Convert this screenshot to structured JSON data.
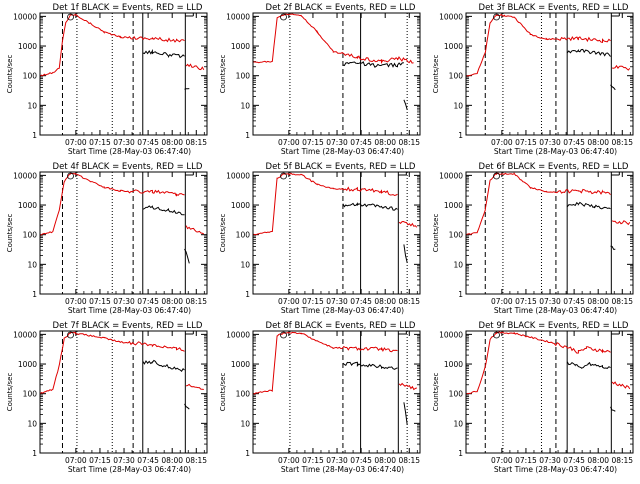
{
  "figure": {
    "background": "#ffffff"
  },
  "colors": {
    "events": "#000000",
    "lld": "#e00000",
    "axis": "#000000"
  },
  "ylabel": "Counts/sec",
  "xlabel": "Start Time (28-May-03 06:47:40)",
  "x_tick_labels": [
    "07:00",
    "07:15",
    "07:30",
    "07:45",
    "08:00",
    "08:15"
  ],
  "y_tick_labels": [
    "1",
    "10",
    "100",
    "1000",
    "10000"
  ],
  "chart_data": [
    {
      "type": "line",
      "title": "Det 1f BLACK = Events, RED = LLD",
      "xlim": [
        -10,
        94
      ],
      "ylim": [
        1,
        13000
      ],
      "markers": {
        "dotted": [
          13,
          35
        ],
        "dashed": [
          4,
          48
        ],
        "solid": [
          54
        ]
      },
      "series": [
        {
          "name": "LLD",
          "points": [
            [
              -10,
              100
            ],
            [
              -2,
              125
            ],
            [
              2,
              180
            ],
            [
              4,
              1500
            ],
            [
              6,
              6200
            ],
            [
              9,
              11000
            ],
            [
              12,
              11500
            ],
            [
              30,
              3000
            ],
            [
              40,
              2000
            ],
            [
              60,
              1800
            ],
            [
              75,
              1500
            ],
            [
              80,
              1450
            ]
          ]
        },
        {
          "name": "LLD",
          "points": [
            [
              81,
              240
            ],
            [
              92,
              170
            ]
          ]
        },
        {
          "name": "Events",
          "points": [
            [
              54,
              600
            ],
            [
              60,
              640
            ],
            [
              70,
              500
            ],
            [
              80,
              440
            ]
          ]
        },
        {
          "name": "Events",
          "points": [
            [
              80,
              40
            ],
            [
              83,
              32
            ]
          ]
        }
      ]
    },
    {
      "type": "line",
      "title": "Det 2f BLACK = Events, RED = LLD",
      "xlim": [
        -10,
        94
      ],
      "ylim": [
        1,
        13000
      ],
      "markers": {
        "dotted": [
          13,
          86
        ],
        "dashed": [
          46
        ],
        "solid": [
          57
        ]
      },
      "series": [
        {
          "name": "LLD",
          "points": [
            [
              -10,
              280
            ],
            [
              2,
              300
            ],
            [
              5,
              9000
            ],
            [
              10,
              12000
            ],
            [
              20,
              11000
            ],
            [
              30,
              3000
            ],
            [
              40,
              650
            ],
            [
              55,
              420
            ],
            [
              70,
              300
            ],
            [
              80,
              380
            ],
            [
              90,
              290
            ]
          ]
        },
        {
          "name": "Events",
          "points": [
            [
              46,
              250
            ],
            [
              55,
              280
            ],
            [
              65,
              220
            ],
            [
              80,
              230
            ],
            [
              84,
              250
            ]
          ]
        },
        {
          "name": "Events",
          "points": [
            [
              84,
              15
            ],
            [
              86,
              8
            ]
          ]
        }
      ]
    },
    {
      "type": "line",
      "title": "Det 3f BLACK = Events, RED = LLD",
      "xlim": [
        -10,
        94
      ],
      "ylim": [
        1,
        13000
      ],
      "markers": {
        "dotted": [
          13,
          37
        ],
        "dashed": [
          2,
          46
        ],
        "solid": [
          53
        ]
      },
      "series": [
        {
          "name": "LLD",
          "points": [
            [
              -10,
              100
            ],
            [
              -3,
              120
            ],
            [
              2,
              600
            ],
            [
              5,
              6000
            ],
            [
              9,
              11500
            ],
            [
              14,
              10500
            ],
            [
              20,
              9500
            ],
            [
              30,
              2500
            ],
            [
              40,
              1700
            ],
            [
              60,
              1800
            ],
            [
              75,
              1500
            ],
            [
              80,
              1450
            ]
          ]
        },
        {
          "name": "LLD",
          "points": [
            [
              81,
              200
            ],
            [
              92,
              170
            ]
          ]
        },
        {
          "name": "Events",
          "points": [
            [
              53,
              650
            ],
            [
              60,
              700
            ],
            [
              70,
              600
            ],
            [
              80,
              500
            ]
          ]
        },
        {
          "name": "Events",
          "points": [
            [
              80,
              45
            ],
            [
              83,
              30
            ]
          ]
        }
      ]
    },
    {
      "type": "line",
      "title": "Det 4f BLACK = Events, RED = LLD",
      "xlim": [
        -10,
        94
      ],
      "ylim": [
        1,
        13000
      ],
      "markers": {
        "dotted": [
          13,
          35
        ],
        "dashed": [
          4,
          48
        ],
        "solid": [
          54
        ]
      },
      "series": [
        {
          "name": "LLD",
          "points": [
            [
              -10,
              100
            ],
            [
              -2,
              125
            ],
            [
              2,
              700
            ],
            [
              5,
              6000
            ],
            [
              9,
              11500
            ],
            [
              12,
              11000
            ],
            [
              30,
              4000
            ],
            [
              40,
              3000
            ],
            [
              60,
              2800
            ],
            [
              75,
              2300
            ],
            [
              80,
              2200
            ]
          ]
        },
        {
          "name": "LLD",
          "points": [
            [
              81,
              180
            ],
            [
              92,
              120
            ]
          ]
        },
        {
          "name": "Events",
          "points": [
            [
              54,
              800
            ],
            [
              60,
              850
            ],
            [
              70,
              650
            ],
            [
              80,
              500
            ]
          ]
        },
        {
          "name": "Events",
          "points": [
            [
              80,
              35
            ],
            [
              83,
              12
            ]
          ]
        }
      ]
    },
    {
      "type": "line",
      "title": "Det 5f BLACK = Events, RED = LLD",
      "xlim": [
        -10,
        94
      ],
      "ylim": [
        1,
        13000
      ],
      "markers": {
        "dotted": [
          13,
          86
        ],
        "dashed": [
          46
        ],
        "solid": [
          57
        ]
      },
      "series": [
        {
          "name": "LLD",
          "points": [
            [
              -10,
              100
            ],
            [
              2,
              130
            ],
            [
              5,
              8000
            ],
            [
              10,
              11500
            ],
            [
              20,
              10500
            ],
            [
              30,
              5000
            ],
            [
              40,
              3500
            ],
            [
              55,
              3400
            ],
            [
              70,
              2900
            ],
            [
              80,
              2200
            ]
          ]
        },
        {
          "name": "LLD",
          "points": [
            [
              81,
              280
            ],
            [
              92,
              200
            ]
          ]
        },
        {
          "name": "Events",
          "points": [
            [
              46,
              1000
            ],
            [
              55,
              1100
            ],
            [
              70,
              900
            ],
            [
              80,
              700
            ]
          ]
        },
        {
          "name": "Events",
          "points": [
            [
              84,
              50
            ],
            [
              86,
              10
            ]
          ]
        }
      ]
    },
    {
      "type": "line",
      "title": "Det 6f BLACK = Events, RED = LLD",
      "xlim": [
        -10,
        94
      ],
      "ylim": [
        1,
        13000
      ],
      "markers": {
        "dotted": [
          13,
          37
        ],
        "dashed": [
          2,
          46
        ],
        "solid": [
          53
        ]
      },
      "series": [
        {
          "name": "LLD",
          "points": [
            [
              -10,
              100
            ],
            [
              -3,
              120
            ],
            [
              2,
              700
            ],
            [
              5,
              7000
            ],
            [
              9,
              11500
            ],
            [
              20,
              11000
            ],
            [
              30,
              4000
            ],
            [
              40,
              2800
            ],
            [
              60,
              3000
            ],
            [
              75,
              2600
            ],
            [
              80,
              2400
            ]
          ]
        },
        {
          "name": "LLD",
          "points": [
            [
              81,
              300
            ],
            [
              92,
              240
            ]
          ]
        },
        {
          "name": "Events",
          "points": [
            [
              53,
              1000
            ],
            [
              60,
              1100
            ],
            [
              70,
              900
            ],
            [
              80,
              700
            ]
          ]
        },
        {
          "name": "Events",
          "points": [
            [
              80,
              40
            ],
            [
              83,
              30
            ]
          ]
        }
      ]
    },
    {
      "type": "line",
      "title": "Det 7f BLACK = Events, RED = LLD",
      "xlim": [
        -10,
        94
      ],
      "ylim": [
        1,
        13000
      ],
      "markers": {
        "dotted": [
          13,
          35
        ],
        "dashed": [
          4,
          48
        ],
        "solid": [
          54
        ]
      },
      "series": [
        {
          "name": "LLD",
          "points": [
            [
              -10,
              100
            ],
            [
              -2,
              140
            ],
            [
              2,
              900
            ],
            [
              5,
              7000
            ],
            [
              9,
              11500
            ],
            [
              12,
              11000
            ],
            [
              30,
              7500
            ],
            [
              40,
              5500
            ],
            [
              60,
              4500
            ],
            [
              75,
              3200
            ],
            [
              80,
              3000
            ]
          ]
        },
        {
          "name": "LLD",
          "points": [
            [
              81,
              200
            ],
            [
              92,
              150
            ]
          ]
        },
        {
          "name": "Events",
          "points": [
            [
              54,
              1100
            ],
            [
              60,
              1200
            ],
            [
              70,
              800
            ],
            [
              80,
              600
            ]
          ]
        },
        {
          "name": "Events",
          "points": [
            [
              80,
              40
            ],
            [
              83,
              30
            ]
          ]
        }
      ]
    },
    {
      "type": "line",
      "title": "Det 8f BLACK = Events, RED = LLD",
      "xlim": [
        -10,
        94
      ],
      "ylim": [
        1,
        13000
      ],
      "markers": {
        "dotted": [
          13,
          86
        ],
        "dashed": [
          46
        ],
        "solid": [
          57
        ]
      },
      "series": [
        {
          "name": "LLD",
          "points": [
            [
              -10,
              100
            ],
            [
              2,
              130
            ],
            [
              5,
              9000
            ],
            [
              10,
              11500
            ],
            [
              20,
              11000
            ],
            [
              30,
              6000
            ],
            [
              40,
              3500
            ],
            [
              55,
              3300
            ],
            [
              70,
              3200
            ],
            [
              80,
              2500
            ]
          ]
        },
        {
          "name": "LLD",
          "points": [
            [
              81,
              220
            ],
            [
              92,
              140
            ]
          ]
        },
        {
          "name": "Events",
          "points": [
            [
              46,
              1000
            ],
            [
              55,
              1000
            ],
            [
              70,
              800
            ],
            [
              80,
              700
            ]
          ]
        },
        {
          "name": "Events",
          "points": [
            [
              84,
              50
            ],
            [
              86,
              10
            ]
          ]
        }
      ]
    },
    {
      "type": "line",
      "title": "Det 9f BLACK = Events, RED = LLD",
      "xlim": [
        -10,
        94
      ],
      "ylim": [
        1,
        13000
      ],
      "markers": {
        "dotted": [
          13,
          37
        ],
        "dashed": [
          2,
          46
        ],
        "solid": [
          53
        ]
      },
      "series": [
        {
          "name": "LLD",
          "points": [
            [
              -10,
              100
            ],
            [
              -3,
              120
            ],
            [
              2,
              800
            ],
            [
              5,
              7000
            ],
            [
              9,
              11500
            ],
            [
              20,
              11000
            ],
            [
              30,
              8000
            ],
            [
              45,
              5000
            ],
            [
              55,
              3500
            ],
            [
              60,
              2500
            ],
            [
              65,
              3500
            ],
            [
              75,
              2800
            ],
            [
              80,
              2500
            ]
          ]
        },
        {
          "name": "LLD",
          "points": [
            [
              81,
              250
            ],
            [
              92,
              150
            ]
          ]
        },
        {
          "name": "Events",
          "points": [
            [
              53,
              1100
            ],
            [
              58,
              1000
            ],
            [
              62,
              650
            ],
            [
              66,
              1000
            ],
            [
              75,
              800
            ],
            [
              80,
              700
            ]
          ]
        },
        {
          "name": "Events",
          "points": [
            [
              80,
              35
            ],
            [
              83,
              25
            ]
          ]
        }
      ]
    }
  ]
}
